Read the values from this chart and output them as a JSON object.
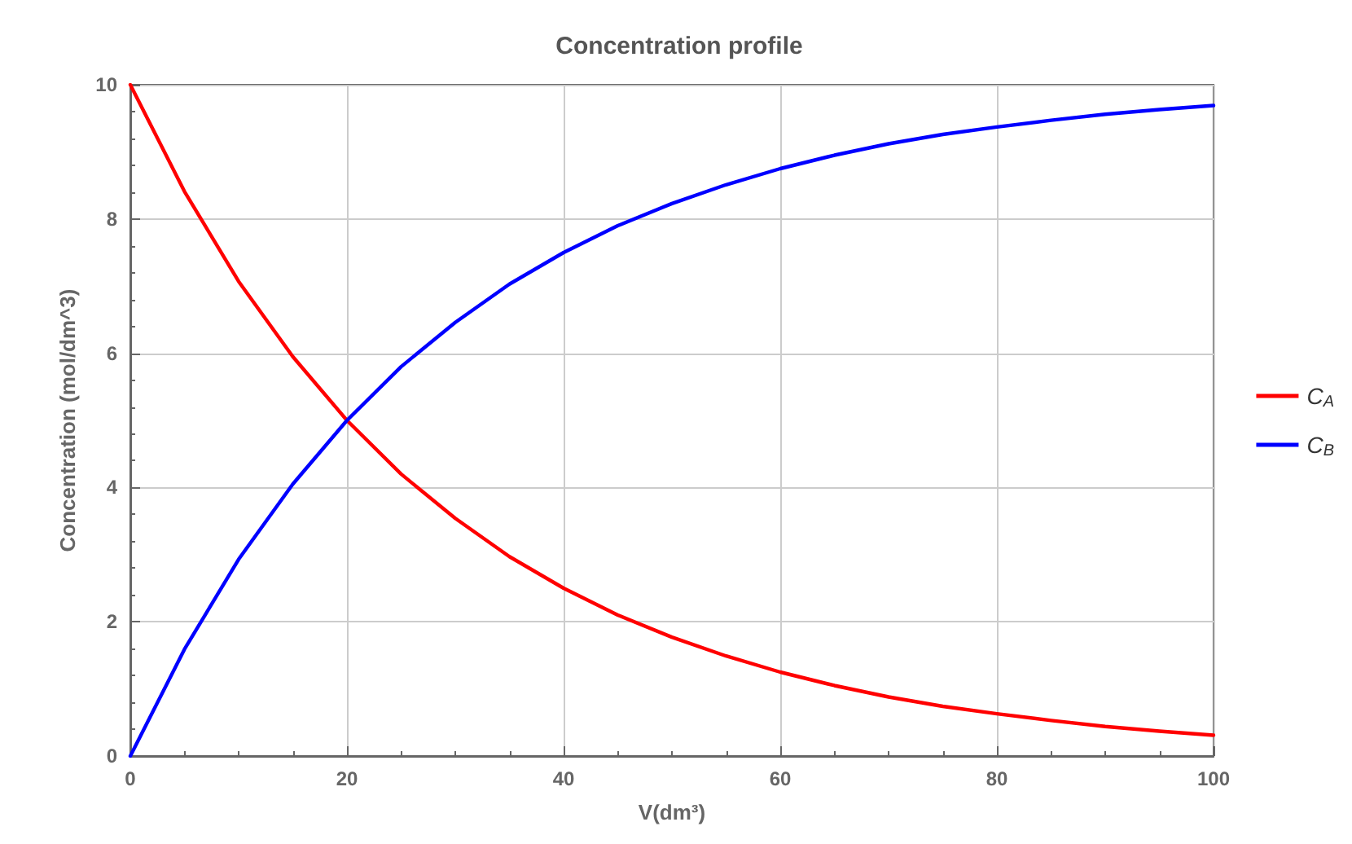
{
  "chart_data": {
    "type": "line",
    "title": "Concentration profile",
    "xlabel": "V(dm³)",
    "ylabel": "Concentration (mol/dm^3)",
    "x": [
      0,
      5,
      10,
      15,
      20,
      25,
      30,
      35,
      40,
      45,
      50,
      55,
      60,
      65,
      70,
      75,
      80,
      85,
      90,
      95,
      100
    ],
    "series": [
      {
        "name": "C$_{A}$",
        "color": "#ff0000",
        "values": [
          10,
          8.41,
          7.07,
          5.95,
          5,
          4.2,
          3.54,
          2.97,
          2.5,
          2.1,
          1.77,
          1.49,
          1.25,
          1.05,
          0.88,
          0.74,
          0.63,
          0.53,
          0.44,
          0.37,
          0.31
        ]
      },
      {
        "name": "C$_{B}$",
        "color": "#0000ff",
        "values": [
          0,
          1.59,
          2.93,
          4.05,
          5,
          5.8,
          6.46,
          7.03,
          7.5,
          7.9,
          8.23,
          8.51,
          8.75,
          8.95,
          9.12,
          9.26,
          9.37,
          9.47,
          9.56,
          9.63,
          9.69
        ]
      }
    ],
    "xlim": [
      0,
      100
    ],
    "xticks": [
      0,
      20,
      40,
      60,
      80,
      100
    ],
    "ylim": [
      0,
      10
    ],
    "yticks": [
      0,
      2,
      4,
      6,
      8,
      10
    ],
    "grid": true,
    "legend": "right",
    "marker": "none",
    "line_style": "solid"
  }
}
